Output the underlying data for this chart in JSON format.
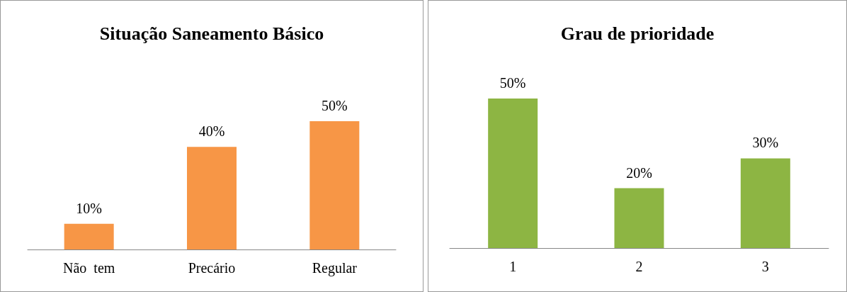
{
  "chart_data": [
    {
      "type": "bar",
      "title": "Situação Saneamento Básico",
      "categories": [
        "Não  tem",
        "Precário",
        "Regular"
      ],
      "values": [
        10,
        40,
        50
      ],
      "value_labels": [
        "10%",
        "40%",
        "50%"
      ],
      "color": "#f79646"
    },
    {
      "type": "bar",
      "title": "Grau de prioridade",
      "categories": [
        "1",
        "2",
        "3"
      ],
      "values": [
        50,
        20,
        30
      ],
      "value_labels": [
        "50%",
        "20%",
        "30%"
      ],
      "color": "#8db543"
    }
  ]
}
